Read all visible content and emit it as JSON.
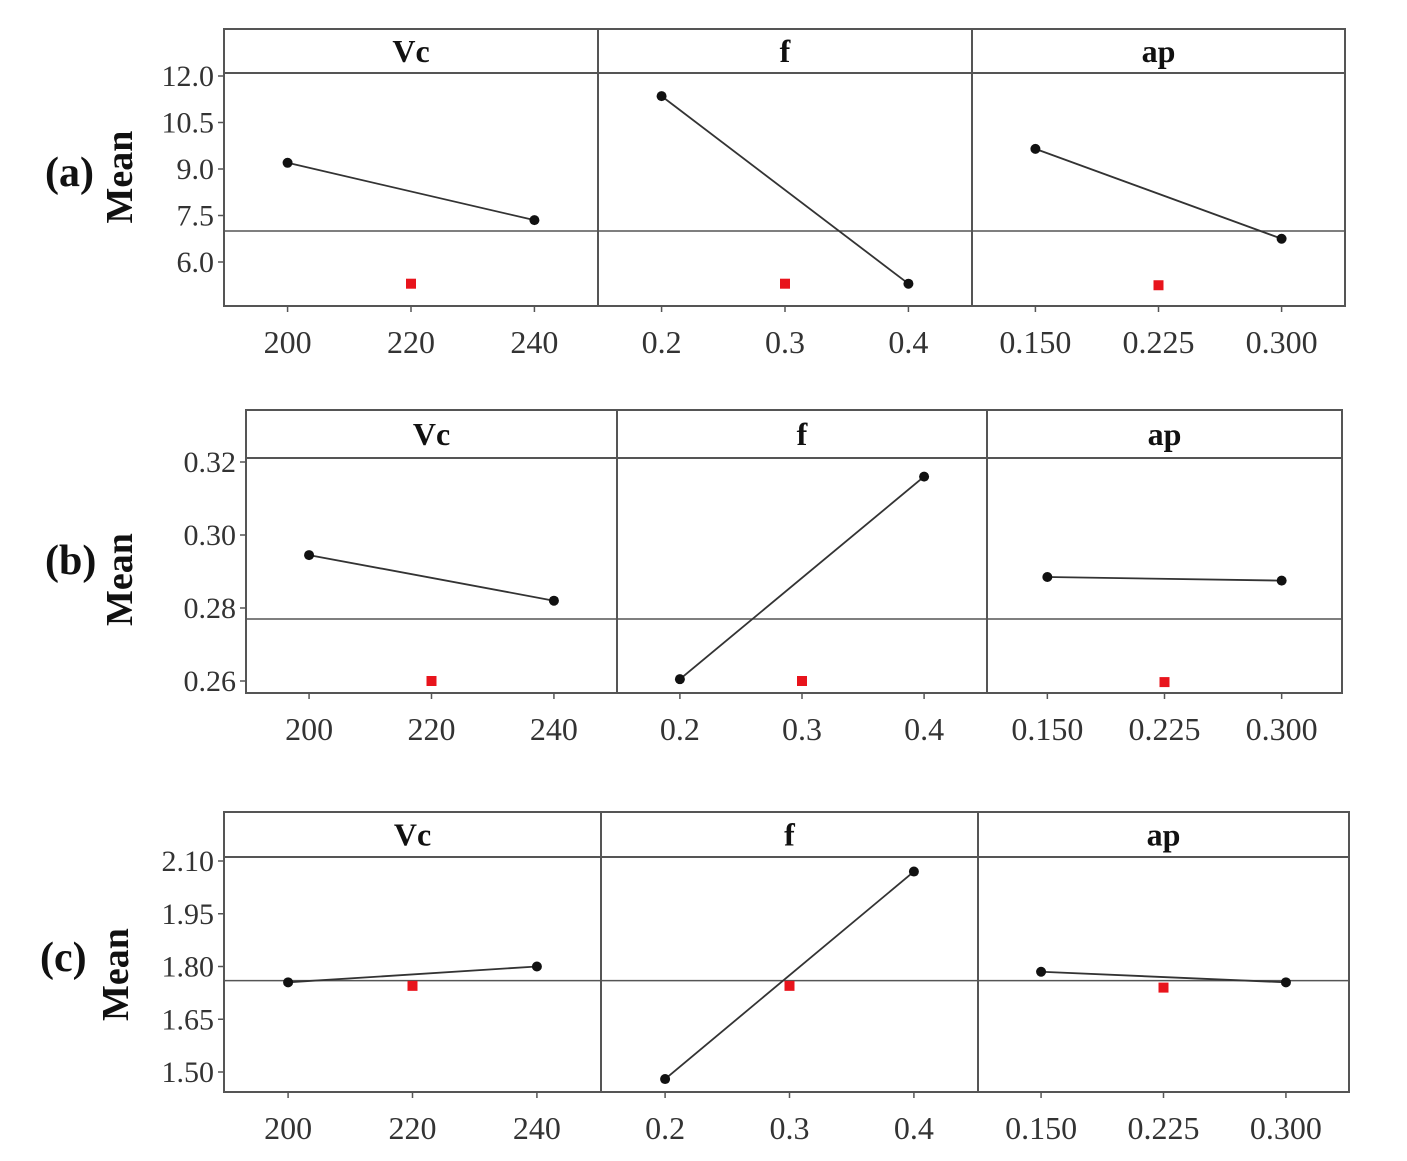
{
  "figure": {
    "panels": [
      {
        "label": "(a)",
        "ylabel": "Mean",
        "yticks": [
          "12.0",
          "10.5",
          "9.0",
          "7.5",
          "6.0"
        ]
      },
      {
        "label": "(b)",
        "ylabel": "Mean",
        "yticks": [
          "0.32",
          "0.30",
          "0.28",
          "0.26"
        ]
      },
      {
        "label": "(c)",
        "ylabel": "Mean",
        "yticks": [
          "2.10",
          "1.95",
          "1.80",
          "1.65",
          "1.50"
        ]
      }
    ],
    "facets": [
      {
        "title": "Vc",
        "xticks": [
          "200",
          "220",
          "240"
        ]
      },
      {
        "title": "f",
        "xticks": [
          "0.2",
          "0.3",
          "0.4"
        ]
      },
      {
        "title": "ap",
        "xticks": [
          "0.150",
          "0.225",
          "0.300"
        ]
      }
    ],
    "colors": {
      "line": "#333333",
      "point": "#111111",
      "center_marker": "#e8141c",
      "frame": "#555555",
      "mean_line": "#555555"
    }
  },
  "chart_data": [
    {
      "type": "line",
      "title": "(a) Main effects plot for means",
      "ylabel": "Mean",
      "ylim": [
        4.95,
        12.0
      ],
      "yticks": [
        6.0,
        7.5,
        9.0,
        10.5,
        12.0
      ],
      "grand_mean": 7.0,
      "grid": false,
      "facets": [
        {
          "name": "Vc",
          "x": [
            200,
            220,
            240
          ],
          "values": [
            9.2,
            null,
            7.35
          ],
          "center_point": 5.3
        },
        {
          "name": "f",
          "x": [
            0.2,
            0.3,
            0.4
          ],
          "values": [
            11.35,
            null,
            5.3
          ],
          "center_point": 5.3
        },
        {
          "name": "ap",
          "x": [
            0.15,
            0.225,
            0.3
          ],
          "values": [
            9.65,
            null,
            6.75
          ],
          "center_point": 5.25
        }
      ]
    },
    {
      "type": "line",
      "title": "(b) Main effects plot for means",
      "ylabel": "Mean",
      "ylim": [
        0.2565,
        0.3215
      ],
      "yticks": [
        0.26,
        0.28,
        0.3,
        0.32
      ],
      "grand_mean": 0.277,
      "grid": false,
      "facets": [
        {
          "name": "Vc",
          "x": [
            200,
            220,
            240
          ],
          "values": [
            0.2945,
            null,
            0.282
          ],
          "center_point": 0.26
        },
        {
          "name": "f",
          "x": [
            0.2,
            0.3,
            0.4
          ],
          "values": [
            0.2605,
            null,
            0.316
          ],
          "center_point": 0.26
        },
        {
          "name": "ap",
          "x": [
            0.15,
            0.225,
            0.3
          ],
          "values": [
            0.2885,
            null,
            0.2875
          ],
          "center_point": 0.2597
        }
      ]
    },
    {
      "type": "line",
      "title": "(c) Main effects plot for means",
      "ylabel": "Mean",
      "ylim": [
        1.44,
        2.11
      ],
      "yticks": [
        1.5,
        1.65,
        1.8,
        1.95,
        2.1
      ],
      "grand_mean": 1.76,
      "grid": false,
      "facets": [
        {
          "name": "Vc",
          "x": [
            200,
            220,
            240
          ],
          "values": [
            1.755,
            null,
            1.8
          ],
          "center_point": 1.745
        },
        {
          "name": "f",
          "x": [
            0.2,
            0.3,
            0.4
          ],
          "values": [
            1.48,
            null,
            2.07
          ],
          "center_point": 1.745
        },
        {
          "name": "ap",
          "x": [
            0.15,
            0.225,
            0.3
          ],
          "values": [
            1.785,
            null,
            1.755
          ],
          "center_point": 1.74
        }
      ]
    }
  ]
}
